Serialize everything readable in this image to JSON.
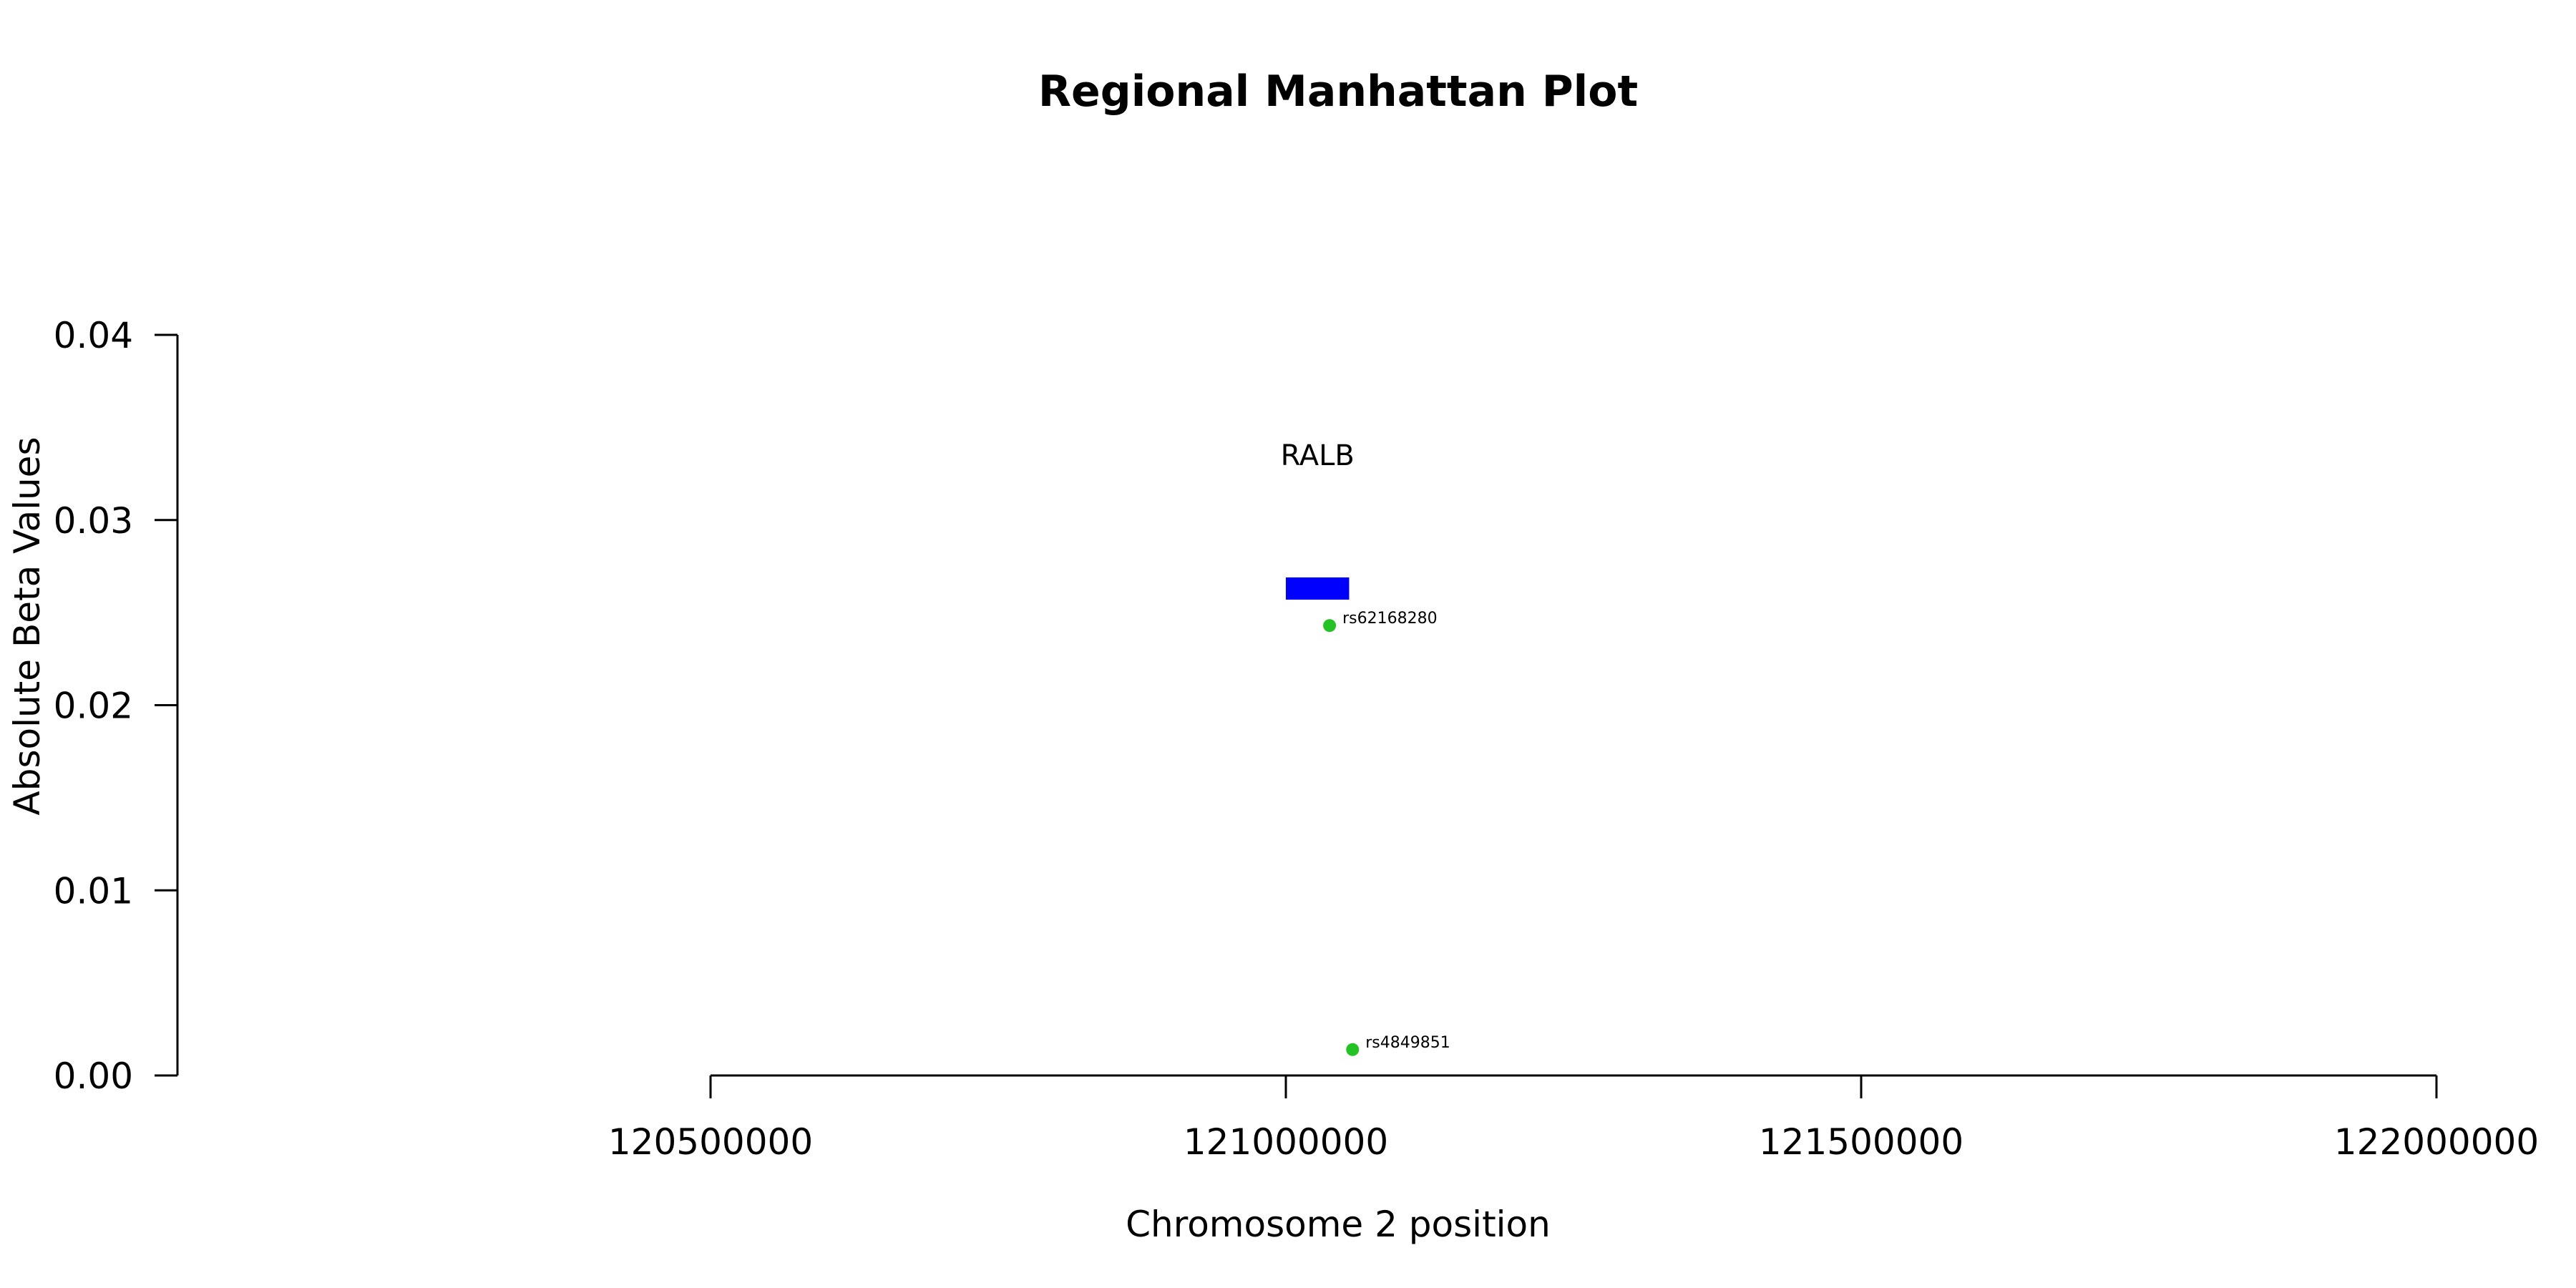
{
  "chart_data": {
    "type": "scatter",
    "title": "Regional Manhattan Plot",
    "xlabel": "Chromosome 2 position",
    "ylabel": "Absolute Beta Values",
    "xlim": [
      120500000,
      122000000
    ],
    "ylim": [
      0,
      0.04
    ],
    "x_ticks": [
      120500000,
      121000000,
      121500000,
      122000000
    ],
    "x_tick_labels": [
      "120500000",
      "121000000",
      "121500000",
      "122000000"
    ],
    "y_ticks": [
      0,
      0.01,
      0.02,
      0.03,
      0.04
    ],
    "y_tick_labels": [
      "0.00",
      "0.01",
      "0.02",
      "0.03",
      "0.04"
    ],
    "grid": false,
    "points": [
      {
        "label": "rs62168280",
        "x": 121038000,
        "y": 0.0243,
        "color": "#22c322"
      },
      {
        "label": "rs4849851",
        "x": 121058000,
        "y": 0.0014,
        "color": "#22c322"
      }
    ],
    "genes": [
      {
        "name": "RALB",
        "start": 121000000,
        "end": 121055000,
        "y_low": 0.0257,
        "y_high": 0.0269,
        "label_y": 0.0335,
        "color": "#0000ff"
      }
    ]
  }
}
